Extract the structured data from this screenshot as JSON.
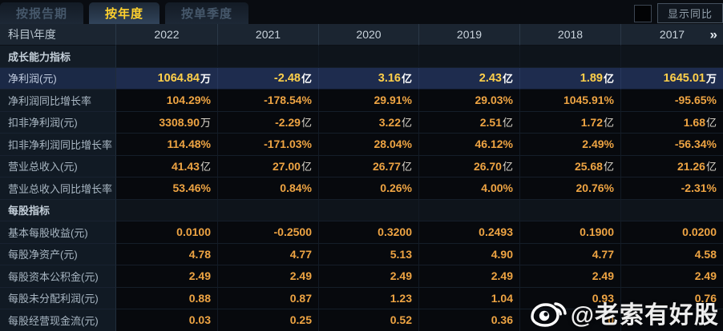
{
  "tabs": [
    {
      "label": "按报告期",
      "active": false
    },
    {
      "label": "按年度",
      "active": true
    },
    {
      "label": "按单季度",
      "active": false
    }
  ],
  "controls": {
    "show_yoy_label": "显示同比",
    "checkbox_checked": false
  },
  "table": {
    "corner_label": "科目\\年度",
    "years": [
      "2022",
      "2021",
      "2020",
      "2019",
      "2018",
      "2017"
    ],
    "more_years_icon": "»",
    "rows": [
      {
        "type": "section",
        "label": "成长能力指标",
        "cells": [
          {
            "n": ""
          },
          {
            "n": ""
          },
          {
            "n": ""
          },
          {
            "n": ""
          },
          {
            "n": ""
          },
          {
            "n": ""
          }
        ]
      },
      {
        "type": "data",
        "highlight": true,
        "label": "净利润(元)",
        "cells": [
          {
            "n": "1064.84",
            "u": "万"
          },
          {
            "n": "-2.48",
            "u": "亿"
          },
          {
            "n": "3.16",
            "u": "亿"
          },
          {
            "n": "2.43",
            "u": "亿"
          },
          {
            "n": "1.89",
            "u": "亿"
          },
          {
            "n": "1645.01",
            "u": "万"
          }
        ]
      },
      {
        "type": "data",
        "label": "净利润同比增长率",
        "cells": [
          {
            "n": "104.29%"
          },
          {
            "n": "-178.54%"
          },
          {
            "n": "29.91%"
          },
          {
            "n": "29.03%"
          },
          {
            "n": "1045.91%"
          },
          {
            "n": "-95.65%"
          }
        ]
      },
      {
        "type": "data",
        "label": "扣非净利润(元)",
        "cells": [
          {
            "n": "3308.90",
            "u": "万"
          },
          {
            "n": "-2.29",
            "u": "亿"
          },
          {
            "n": "3.22",
            "u": "亿"
          },
          {
            "n": "2.51",
            "u": "亿"
          },
          {
            "n": "1.72",
            "u": "亿"
          },
          {
            "n": "1.68",
            "u": "亿"
          }
        ]
      },
      {
        "type": "data",
        "label": "扣非净利润同比增长率",
        "cells": [
          {
            "n": "114.48%"
          },
          {
            "n": "-171.03%"
          },
          {
            "n": "28.04%"
          },
          {
            "n": "46.12%"
          },
          {
            "n": "2.49%"
          },
          {
            "n": "-56.34%"
          }
        ]
      },
      {
        "type": "data",
        "label": "营业总收入(元)",
        "cells": [
          {
            "n": "41.43",
            "u": "亿"
          },
          {
            "n": "27.00",
            "u": "亿"
          },
          {
            "n": "26.77",
            "u": "亿"
          },
          {
            "n": "26.70",
            "u": "亿"
          },
          {
            "n": "25.68",
            "u": "亿"
          },
          {
            "n": "21.26",
            "u": "亿"
          }
        ]
      },
      {
        "type": "data",
        "label": "营业总收入同比增长率",
        "cells": [
          {
            "n": "53.46%"
          },
          {
            "n": "0.84%"
          },
          {
            "n": "0.26%"
          },
          {
            "n": "4.00%"
          },
          {
            "n": "20.76%"
          },
          {
            "n": "-2.31%"
          }
        ]
      },
      {
        "type": "section",
        "label": "每股指标",
        "cells": [
          {
            "n": ""
          },
          {
            "n": ""
          },
          {
            "n": ""
          },
          {
            "n": ""
          },
          {
            "n": ""
          },
          {
            "n": ""
          }
        ]
      },
      {
        "type": "data",
        "label": "基本每股收益(元)",
        "cells": [
          {
            "n": "0.0100"
          },
          {
            "n": "-0.2500"
          },
          {
            "n": "0.3200"
          },
          {
            "n": "0.2493"
          },
          {
            "n": "0.1900"
          },
          {
            "n": "0.0200"
          }
        ]
      },
      {
        "type": "data",
        "label": "每股净资产(元)",
        "cells": [
          {
            "n": "4.78"
          },
          {
            "n": "4.77"
          },
          {
            "n": "5.13"
          },
          {
            "n": "4.90"
          },
          {
            "n": "4.77"
          },
          {
            "n": "4.58"
          }
        ]
      },
      {
        "type": "data",
        "label": "每股资本公积金(元)",
        "cells": [
          {
            "n": "2.49"
          },
          {
            "n": "2.49"
          },
          {
            "n": "2.49"
          },
          {
            "n": "2.49"
          },
          {
            "n": "2.49"
          },
          {
            "n": "2.49"
          }
        ]
      },
      {
        "type": "data",
        "label": "每股未分配利润(元)",
        "cells": [
          {
            "n": "0.88"
          },
          {
            "n": "0.87"
          },
          {
            "n": "1.23"
          },
          {
            "n": "1.04"
          },
          {
            "n": "0.93"
          },
          {
            "n": "0.76"
          }
        ]
      },
      {
        "type": "data",
        "label": "每股经营现金流(元)",
        "cells": [
          {
            "n": "0.03"
          },
          {
            "n": "0.25"
          },
          {
            "n": "0.52"
          },
          {
            "n": "0.36"
          },
          {
            "n": "0"
          },
          {
            "n": ""
          }
        ]
      }
    ]
  },
  "watermark": {
    "icon": "weibo-icon",
    "text": "@老索有好股"
  },
  "colors": {
    "value_orange": "#eea443",
    "highlight_yellow": "#ffd04a",
    "tab_active_yellow": "#ffd12e",
    "header_bg": "#1b2531",
    "highlight_row_bg": "#1e2c4e"
  }
}
